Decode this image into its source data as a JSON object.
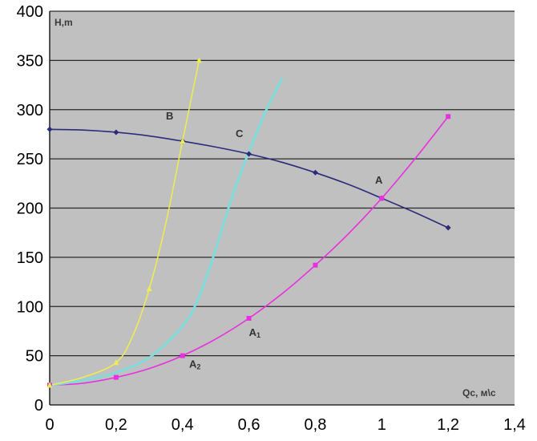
{
  "chart_data": {
    "type": "line",
    "xlabel": "Qc, м\\с",
    "ylabel": "H,m",
    "xlim": [
      0,
      1.4
    ],
    "ylim": [
      0,
      400
    ],
    "x_ticks": [
      "0",
      "0,2",
      "0,4",
      "0,6",
      "0,8",
      "1",
      "1,2",
      "1,4"
    ],
    "y_ticks": [
      "0",
      "50",
      "100",
      "150",
      "200",
      "250",
      "300",
      "350",
      "400"
    ],
    "grid": true,
    "colors": {
      "plot_background": "#c0c0c0",
      "grid": "#2a2a2a",
      "pump_curve": "#2b2b7a",
      "system_A": "#e830e0",
      "system_C": "#7fdcdc",
      "system_B": "#ecec55"
    },
    "series": [
      {
        "key": "pump",
        "color": "#2b2b7a",
        "marker": "diamond",
        "points": [
          [
            0,
            280
          ],
          [
            0.2,
            277
          ],
          [
            0.4,
            268
          ],
          [
            0.6,
            255
          ],
          [
            0.8,
            236
          ],
          [
            1.0,
            210
          ],
          [
            1.2,
            180
          ]
        ],
        "smooth": [
          [
            0,
            280
          ],
          [
            0.1,
            279.3
          ],
          [
            0.2,
            277
          ],
          [
            0.3,
            273.3
          ],
          [
            0.4,
            268
          ],
          [
            0.5,
            262
          ],
          [
            0.6,
            255
          ],
          [
            0.7,
            246.5
          ],
          [
            0.8,
            236
          ],
          [
            0.9,
            224
          ],
          [
            1.0,
            210
          ],
          [
            1.1,
            195.5
          ],
          [
            1.2,
            180
          ]
        ]
      },
      {
        "key": "A",
        "color": "#e830e0",
        "marker": "square",
        "points": [
          [
            0,
            20
          ],
          [
            0.2,
            28
          ],
          [
            0.4,
            50
          ],
          [
            0.6,
            88
          ],
          [
            0.8,
            142
          ],
          [
            1.0,
            210
          ],
          [
            1.2,
            293
          ]
        ],
        "smooth": [
          [
            0,
            20
          ],
          [
            0.1,
            22
          ],
          [
            0.2,
            28
          ],
          [
            0.3,
            37
          ],
          [
            0.4,
            50
          ],
          [
            0.5,
            67
          ],
          [
            0.6,
            88
          ],
          [
            0.7,
            113
          ],
          [
            0.8,
            142
          ],
          [
            0.9,
            174
          ],
          [
            1.0,
            210
          ],
          [
            1.1,
            250
          ],
          [
            1.2,
            293
          ]
        ]
      },
      {
        "key": "C",
        "color": "#7fdcdc",
        "marker": "none",
        "points": [],
        "smooth": [
          [
            0,
            20
          ],
          [
            0.1,
            25
          ],
          [
            0.2,
            33
          ],
          [
            0.3,
            48
          ],
          [
            0.4,
            80
          ],
          [
            0.45,
            110
          ],
          [
            0.5,
            158
          ],
          [
            0.55,
            212
          ],
          [
            0.6,
            257
          ],
          [
            0.65,
            298
          ],
          [
            0.7,
            332
          ]
        ]
      },
      {
        "key": "B",
        "color": "#ecec55",
        "marker": "triangle",
        "points": [
          [
            0,
            20
          ],
          [
            0.2,
            43
          ],
          [
            0.3,
            118
          ],
          [
            0.4,
            268
          ],
          [
            0.45,
            350
          ]
        ],
        "smooth": [
          [
            0,
            20
          ],
          [
            0.1,
            28
          ],
          [
            0.2,
            43
          ],
          [
            0.25,
            70
          ],
          [
            0.3,
            118
          ],
          [
            0.35,
            185
          ],
          [
            0.4,
            268
          ],
          [
            0.45,
            350
          ]
        ]
      }
    ],
    "annotations": [
      {
        "text": "B",
        "sub": "",
        "x": 0.35,
        "y": 290
      },
      {
        "text": "C",
        "sub": "",
        "x": 0.56,
        "y": 272
      },
      {
        "text": "A",
        "sub": "",
        "x": 0.98,
        "y": 225
      },
      {
        "text": "A",
        "sub": "1",
        "x": 0.6,
        "y": 70
      },
      {
        "text": "A",
        "sub": "2",
        "x": 0.42,
        "y": 38
      }
    ]
  }
}
